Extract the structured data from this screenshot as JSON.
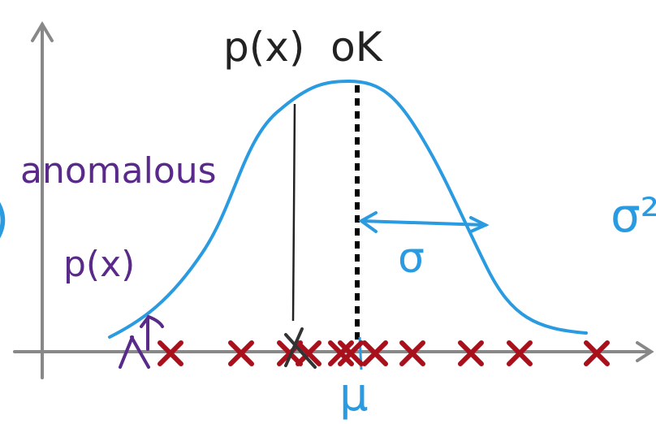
{
  "labels": {
    "top": "p(x)  oK",
    "anomalous": "anomalous",
    "anomalous_px": "p(x)",
    "sigma": "σ",
    "mu": "μ",
    "sigma_squared": "σ²",
    "left_edge": ")"
  },
  "colors": {
    "curve": "#2a9be0",
    "crosses": "#a8101c",
    "anomaly": "#5a2a8a",
    "axes": "#888888",
    "ink": "#222222"
  },
  "crosses": [
    210,
    297,
    357,
    380,
    420,
    432,
    462,
    508,
    580,
    640,
    735
  ]
}
